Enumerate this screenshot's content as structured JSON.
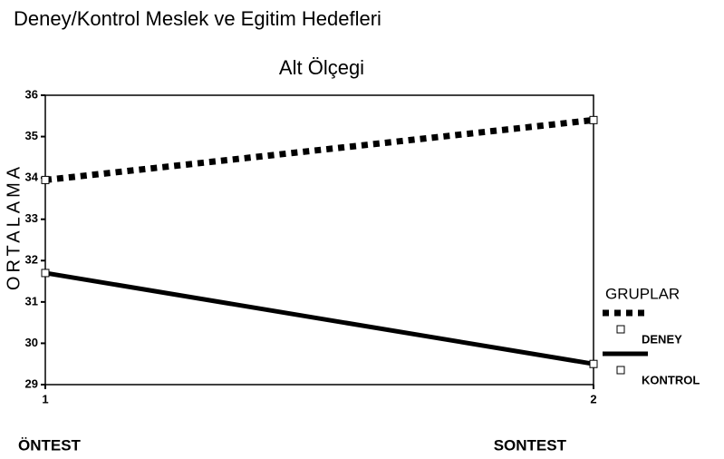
{
  "chart_data": {
    "type": "line",
    "title": "Deney/Kontrol Meslek ve Egitim Hedefleri",
    "subtitle": "Alt Ölçegi",
    "y_label": "ORTALAMA",
    "x": [
      1,
      2
    ],
    "x_annotations": [
      "ÖNTEST",
      "SONTEST"
    ],
    "xlim": [
      1,
      2
    ],
    "xticks": [
      1,
      2
    ],
    "ylim": [
      29,
      36
    ],
    "yticks": [
      29,
      30,
      31,
      32,
      33,
      34,
      35,
      36
    ],
    "legend_title": "GRUPLAR",
    "legend": "right",
    "series": [
      {
        "name": "DENEY",
        "color": "#000000",
        "style": "dotted",
        "values": [
          33.95,
          35.4
        ]
      },
      {
        "name": "KONTROL",
        "color": "#000000",
        "style": "solid",
        "values": [
          31.7,
          29.5
        ]
      }
    ]
  }
}
